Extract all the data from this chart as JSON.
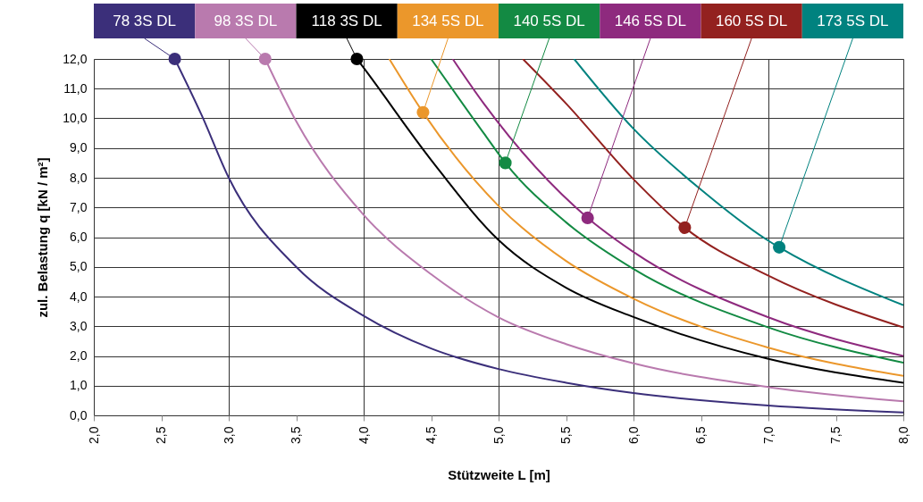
{
  "chart_data": {
    "type": "line",
    "xlabel": "Stützweite L [m]",
    "ylabel": "zul. Belastung q [kN / m²]",
    "xlim": [
      2.0,
      8.0
    ],
    "ylim": [
      0.0,
      12.0
    ],
    "xticks": [
      {
        "value": 2.0,
        "label": "2,0"
      },
      {
        "value": 2.5,
        "label": "2,5"
      },
      {
        "value": 3.0,
        "label": "3,0"
      },
      {
        "value": 3.5,
        "label": "3,5"
      },
      {
        "value": 4.0,
        "label": "4,0"
      },
      {
        "value": 4.5,
        "label": "4,5"
      },
      {
        "value": 5.0,
        "label": "5,0"
      },
      {
        "value": 5.5,
        "label": "5,5"
      },
      {
        "value": 6.0,
        "label": "6,0"
      },
      {
        "value": 6.5,
        "label": "6,5"
      },
      {
        "value": 7.0,
        "label": "7,0"
      },
      {
        "value": 7.5,
        "label": "7,5"
      },
      {
        "value": 8.0,
        "label": "8,0"
      }
    ],
    "yticks": [
      {
        "value": 0,
        "label": "0,0"
      },
      {
        "value": 1,
        "label": "1,0"
      },
      {
        "value": 2,
        "label": "2,0"
      },
      {
        "value": 3,
        "label": "3,0"
      },
      {
        "value": 4,
        "label": "4,0"
      },
      {
        "value": 5,
        "label": "5,0"
      },
      {
        "value": 6,
        "label": "6,0"
      },
      {
        "value": 7,
        "label": "7,0"
      },
      {
        "value": 8,
        "label": "8,0"
      },
      {
        "value": 9,
        "label": "9,0"
      },
      {
        "value": 10,
        "label": "10,0"
      },
      {
        "value": 11,
        "label": "11,0"
      },
      {
        "value": 12,
        "label": "12,0"
      }
    ],
    "grid": true,
    "legend": "top",
    "marker": "none",
    "series": [
      {
        "name": "78 3S DL",
        "color": "#3b2f7a",
        "x": [
          2.6,
          2.8,
          3.0,
          3.5,
          4.0,
          4.5,
          5.0,
          5.5,
          6.0,
          7.0,
          8.0
        ],
        "values": [
          12.0,
          10.1,
          8.0,
          5.0,
          3.35,
          2.25,
          1.56,
          1.1,
          0.75,
          0.33,
          0.1
        ]
      },
      {
        "name": "98 3S DL",
        "color": "#b97aae",
        "x": [
          3.27,
          3.5,
          4.0,
          4.5,
          5.0,
          5.5,
          6.0,
          7.0,
          8.0
        ],
        "values": [
          12.0,
          9.9,
          6.75,
          4.75,
          3.3,
          2.4,
          1.75,
          0.95,
          0.47
        ]
      },
      {
        "name": "118 3S DL",
        "color": "#000000",
        "x": [
          3.95,
          4.0,
          4.5,
          5.0,
          5.5,
          6.0,
          7.0,
          8.0
        ],
        "values": [
          12.0,
          11.7,
          8.6,
          5.9,
          4.3,
          3.31,
          1.9,
          1.1
        ]
      },
      {
        "name": "134 5S DL",
        "color": "#eb972b",
        "x": [
          4.19,
          4.44,
          5.0,
          5.5,
          6.0,
          7.0,
          8.0
        ],
        "values": [
          12.0,
          10.2,
          7.05,
          5.2,
          3.93,
          2.28,
          1.33
        ]
      },
      {
        "name": "140 5S DL",
        "color": "#138a43",
        "x": [
          4.5,
          4.89,
          5.05,
          5.5,
          6.0,
          7.0,
          8.0
        ],
        "values": [
          12.0,
          9.5,
          8.5,
          6.5,
          4.93,
          2.96,
          1.77
        ]
      },
      {
        "name": "146 5S DL",
        "color": "#8e2a7e",
        "x": [
          4.66,
          4.89,
          5.66,
          6.0,
          7.0,
          8.0
        ],
        "values": [
          12.0,
          10.5,
          6.65,
          5.5,
          3.3,
          2.0
        ]
      },
      {
        "name": "160 5S DL",
        "color": "#93211f",
        "x": [
          5.18,
          5.5,
          6.0,
          6.38,
          7.0,
          8.0
        ],
        "values": [
          12.0,
          10.5,
          7.95,
          6.32,
          4.7,
          2.96
        ]
      },
      {
        "name": "173 5S DL",
        "color": "#00827f",
        "x": [
          5.56,
          6.0,
          6.5,
          7.0,
          7.08,
          8.0
        ],
        "values": [
          12.0,
          9.65,
          7.6,
          5.88,
          5.66,
          3.71
        ]
      },
      {
        "type": "scatter",
        "marker": "circle",
        "x": [
          2.6,
          3.27,
          3.95,
          4.44,
          5.05,
          5.66,
          6.38,
          7.08
        ],
        "values": [
          12.0,
          12.0,
          12.0,
          10.2,
          8.5,
          6.65,
          6.32,
          5.66
        ],
        "colors": [
          "#3b2f7a",
          "#b97aae",
          "#000000",
          "#eb972b",
          "#138a43",
          "#8e2a7e",
          "#93211f",
          "#00827f"
        ]
      }
    ]
  }
}
